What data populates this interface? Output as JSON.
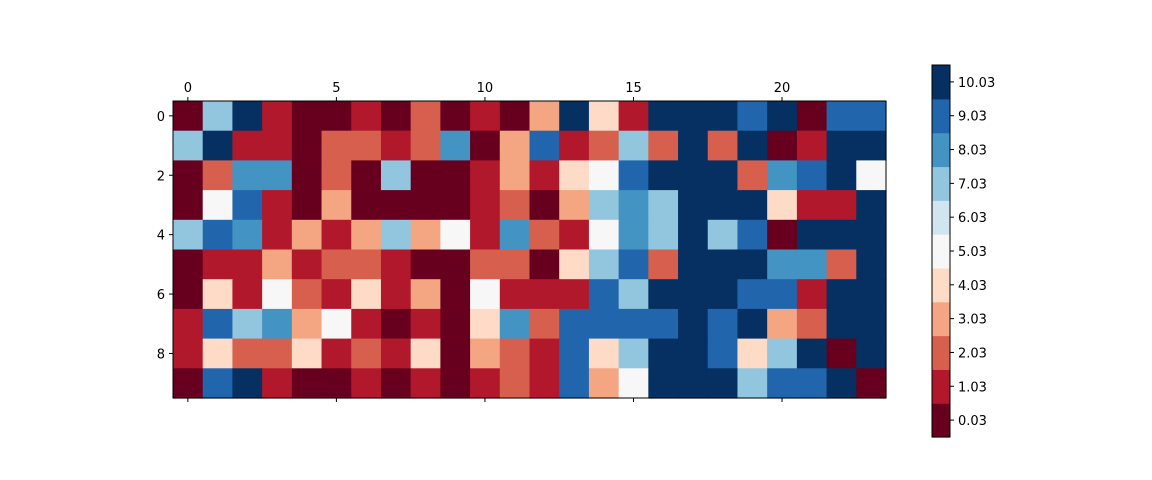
{
  "chart_data": {
    "type": "heatmap",
    "title": "",
    "xlabel": "",
    "ylabel": "",
    "x_ticks": [
      0,
      5,
      10,
      15,
      20
    ],
    "y_ticks": [
      0,
      2,
      4,
      6,
      8
    ],
    "x_tick_position": "top",
    "n_cols": 24,
    "n_rows": 10,
    "colormap": "RdBu",
    "colorbar": {
      "placement": "right",
      "ticks": [
        "0.03",
        "1.03",
        "2.03",
        "3.03",
        "4.03",
        "5.03",
        "6.03",
        "7.03",
        "8.03",
        "9.03",
        "10.03"
      ],
      "vmin": -0.47,
      "vmax": 10.53,
      "colors": [
        "#67001f",
        "#b2182b",
        "#d6604d",
        "#f4a582",
        "#fddbc7",
        "#f7f7f7",
        "#d1e5f0",
        "#92c5de",
        "#4393c3",
        "#2166ac",
        "#053061"
      ]
    },
    "values": [
      [
        0,
        7,
        10,
        1,
        0,
        0,
        1,
        0,
        2,
        0,
        1,
        0,
        3,
        10,
        4,
        1,
        10,
        10,
        10,
        9,
        10,
        0,
        9,
        9
      ],
      [
        7,
        10,
        1,
        1,
        0,
        2,
        2,
        1,
        2,
        8,
        0,
        3,
        9,
        1,
        2,
        7,
        2,
        10,
        2,
        10,
        0,
        1,
        10,
        10
      ],
      [
        0,
        2,
        8,
        8,
        0,
        2,
        0,
        7,
        0,
        0,
        1,
        3,
        1,
        4,
        5,
        9,
        10,
        10,
        10,
        2,
        8,
        9,
        10,
        5
      ],
      [
        0,
        5,
        9,
        1,
        0,
        3,
        0,
        0,
        0,
        0,
        1,
        2,
        0,
        3,
        7,
        8,
        7,
        10,
        10,
        10,
        4,
        1,
        1,
        10
      ],
      [
        7,
        9,
        8,
        1,
        3,
        1,
        3,
        7,
        3,
        5,
        1,
        8,
        2,
        1,
        5,
        8,
        7,
        10,
        7,
        9,
        0,
        10,
        10,
        10
      ],
      [
        0,
        1,
        1,
        3,
        1,
        2,
        2,
        1,
        0,
        0,
        2,
        2,
        0,
        4,
        7,
        9,
        2,
        10,
        10,
        10,
        8,
        8,
        2,
        10
      ],
      [
        0,
        4,
        1,
        5,
        2,
        1,
        4,
        1,
        3,
        0,
        5,
        1,
        1,
        1,
        9,
        7,
        10,
        10,
        10,
        9,
        9,
        1,
        10,
        10
      ],
      [
        1,
        9,
        7,
        8,
        3,
        5,
        1,
        0,
        1,
        0,
        4,
        8,
        2,
        9,
        9,
        9,
        9,
        10,
        9,
        10,
        3,
        2,
        10,
        10
      ],
      [
        1,
        4,
        2,
        2,
        4,
        1,
        2,
        1,
        4,
        0,
        3,
        2,
        1,
        9,
        4,
        7,
        10,
        10,
        9,
        4,
        7,
        10,
        0,
        10
      ],
      [
        0,
        9,
        10,
        1,
        0,
        0,
        1,
        0,
        1,
        0,
        1,
        2,
        1,
        9,
        3,
        5,
        10,
        10,
        10,
        7,
        9,
        9,
        10,
        0
      ]
    ]
  }
}
